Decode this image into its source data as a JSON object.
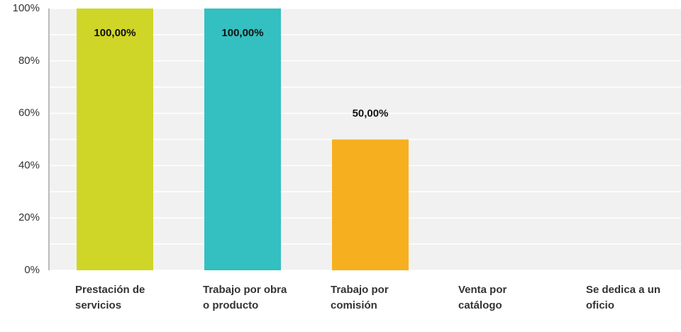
{
  "chart_data": {
    "type": "bar",
    "categories": [
      "Prestación de servicios",
      "Trabajo por obra o producto",
      "Trabajo por comisión",
      "Venta por catálogo",
      "Se dedica a un oficio"
    ],
    "values": [
      100,
      100,
      50,
      0,
      0
    ],
    "value_labels": [
      "100,00%",
      "100,00%",
      "50,00%",
      null,
      null
    ],
    "colors": [
      "#cfd628",
      "#34bfc0",
      "#f6b01f",
      null,
      null
    ],
    "ylim": [
      0,
      100
    ],
    "yticks": [
      {
        "value": 0,
        "label": "0%"
      },
      {
        "value": 20,
        "label": "20%"
      },
      {
        "value": 40,
        "label": "40%"
      },
      {
        "value": 60,
        "label": "60%"
      },
      {
        "value": 80,
        "label": "80%"
      },
      {
        "value": 100,
        "label": "100%"
      }
    ],
    "minor_yticks": [
      10,
      30,
      50,
      70,
      90
    ],
    "grid": true
  }
}
